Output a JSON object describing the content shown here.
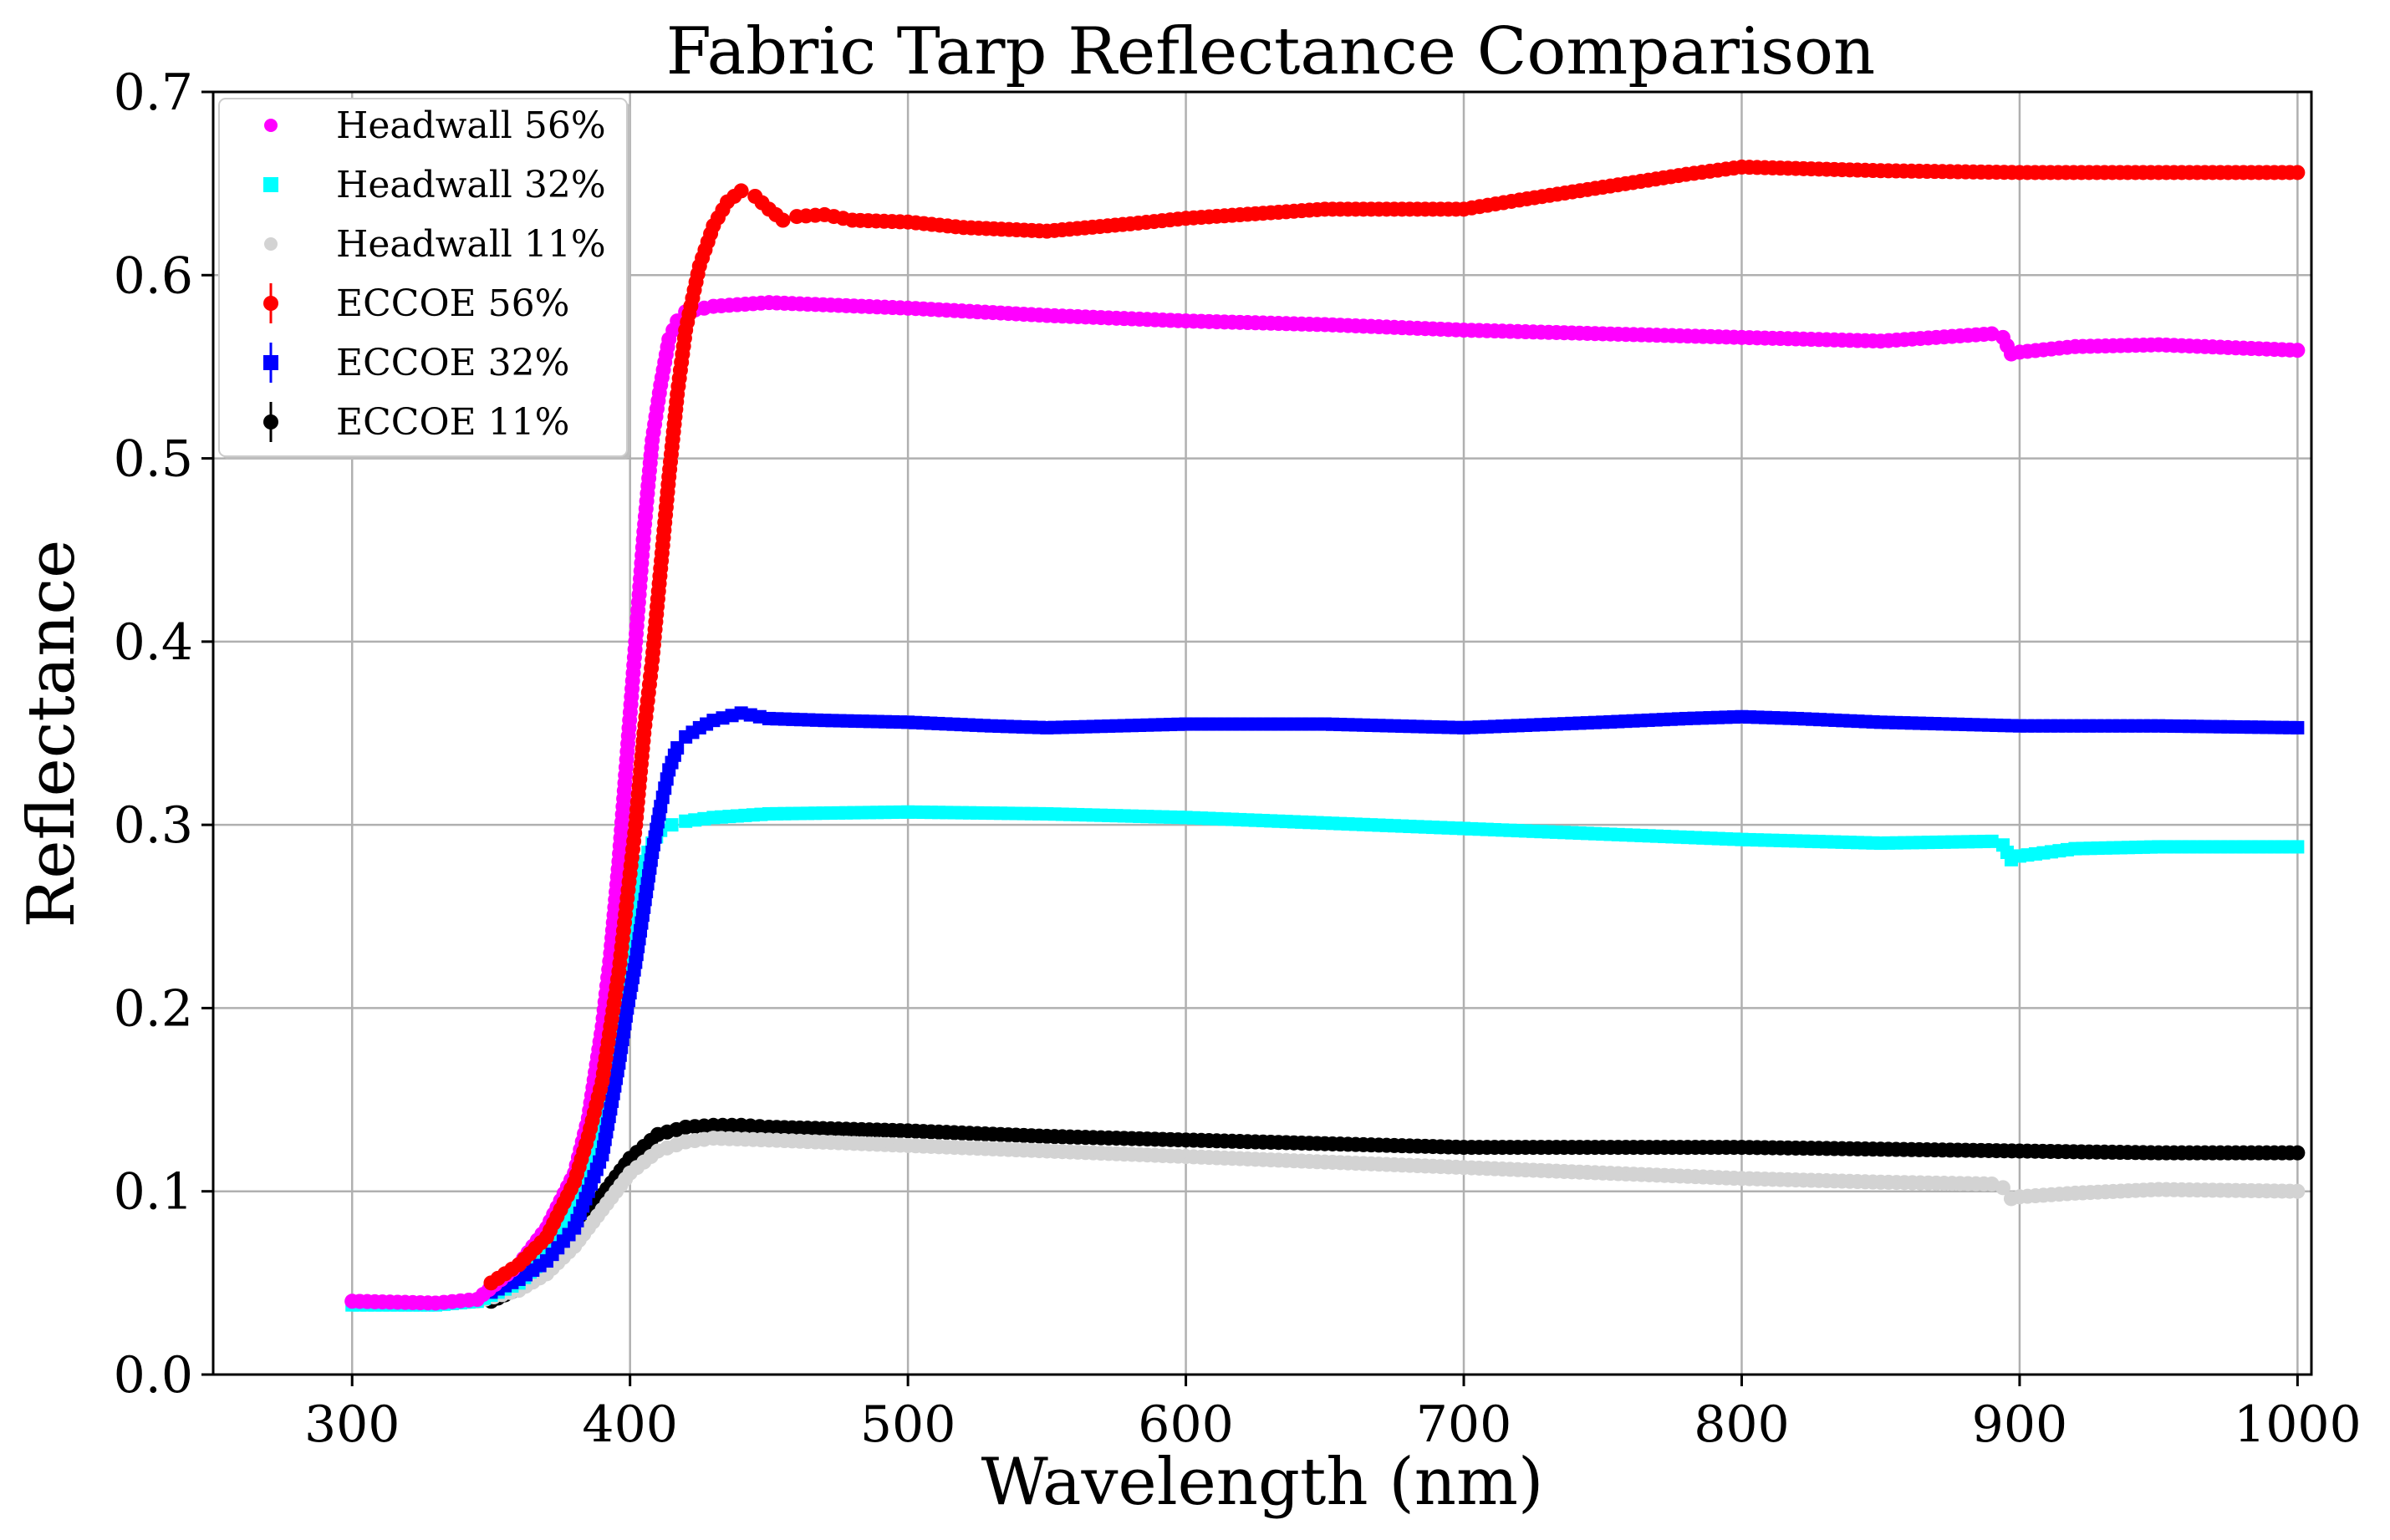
{
  "chart_data": {
    "type": "scatter",
    "title": "Fabric Tarp Reflectance Comparison",
    "xlabel": "Wavelength (nm)",
    "ylabel": "Reflectance",
    "xlim": [
      250,
      1005
    ],
    "ylim": [
      0.0,
      0.7
    ],
    "xticks": [
      300,
      400,
      500,
      600,
      700,
      800,
      900,
      1000
    ],
    "yticks": [
      0.0,
      0.1,
      0.2,
      0.3,
      0.4,
      0.5,
      0.6,
      0.7
    ],
    "xtick_labels": [
      "300",
      "400",
      "500",
      "600",
      "700",
      "800",
      "900",
      "1000"
    ],
    "ytick_labels": [
      "0.0",
      "0.1",
      "0.2",
      "0.3",
      "0.4",
      "0.5",
      "0.6",
      "0.7"
    ],
    "grid": true,
    "legend_position": "top-left",
    "series": [
      {
        "name": "Headwall 56%",
        "color": "#ff00ff",
        "marker": "circle",
        "x": [
          300,
          330,
          345,
          360,
          370,
          380,
          385,
          390,
          393,
          396,
          399,
          402,
          405,
          408,
          411,
          414,
          417,
          420,
          430,
          450,
          500,
          550,
          600,
          650,
          700,
          750,
          800,
          850,
          890,
          894,
          897,
          900,
          920,
          950,
          1000
        ],
        "y": [
          0.04,
          0.039,
          0.041,
          0.06,
          0.08,
          0.11,
          0.14,
          0.19,
          0.23,
          0.28,
          0.34,
          0.4,
          0.46,
          0.51,
          0.54,
          0.565,
          0.575,
          0.58,
          0.583,
          0.585,
          0.582,
          0.578,
          0.575,
          0.573,
          0.57,
          0.568,
          0.566,
          0.564,
          0.568,
          0.566,
          0.557,
          0.558,
          0.561,
          0.562,
          0.559
        ]
      },
      {
        "name": "Headwall 32%",
        "color": "#00ffff",
        "marker": "square",
        "x": [
          300,
          330,
          345,
          360,
          370,
          380,
          385,
          390,
          393,
          396,
          399,
          402,
          405,
          408,
          411,
          415,
          420,
          430,
          450,
          500,
          550,
          600,
          650,
          700,
          750,
          800,
          850,
          890,
          894,
          897,
          900,
          920,
          950,
          1000
        ],
        "y": [
          0.038,
          0.038,
          0.04,
          0.05,
          0.065,
          0.09,
          0.11,
          0.14,
          0.17,
          0.2,
          0.23,
          0.26,
          0.28,
          0.29,
          0.297,
          0.3,
          0.302,
          0.304,
          0.306,
          0.307,
          0.306,
          0.304,
          0.301,
          0.298,
          0.295,
          0.292,
          0.29,
          0.291,
          0.289,
          0.281,
          0.283,
          0.287,
          0.288,
          0.288
        ]
      },
      {
        "name": "Headwall 11%",
        "color": "#d3d3d3",
        "marker": "circle",
        "x": [
          300,
          330,
          345,
          360,
          370,
          380,
          390,
          400,
          410,
          420,
          430,
          450,
          500,
          550,
          600,
          650,
          700,
          750,
          800,
          850,
          890,
          894,
          897,
          900,
          920,
          950,
          1000
        ],
        "y": [
          0.04,
          0.039,
          0.04,
          0.046,
          0.055,
          0.07,
          0.09,
          0.11,
          0.122,
          0.127,
          0.129,
          0.128,
          0.125,
          0.122,
          0.119,
          0.116,
          0.113,
          0.11,
          0.107,
          0.105,
          0.104,
          0.102,
          0.096,
          0.097,
          0.099,
          0.101,
          0.1
        ]
      },
      {
        "name": "ECCOE 56%",
        "color": "#ff0000",
        "marker": "circle",
        "x": [
          350,
          360,
          370,
          375,
          380,
          385,
          390,
          393,
          396,
          399,
          402,
          405,
          408,
          411,
          414,
          417,
          420,
          425,
          430,
          435,
          440,
          445,
          450,
          455,
          460,
          470,
          480,
          500,
          520,
          550,
          580,
          600,
          650,
          700,
          720,
          750,
          780,
          800,
          850,
          900,
          950,
          1000
        ],
        "y": [
          0.05,
          0.06,
          0.075,
          0.09,
          0.105,
          0.13,
          0.16,
          0.19,
          0.22,
          0.26,
          0.3,
          0.35,
          0.39,
          0.44,
          0.49,
          0.535,
          0.57,
          0.605,
          0.627,
          0.64,
          0.646,
          0.643,
          0.636,
          0.63,
          0.632,
          0.633,
          0.63,
          0.629,
          0.626,
          0.624,
          0.628,
          0.631,
          0.636,
          0.636,
          0.641,
          0.648,
          0.655,
          0.659,
          0.657,
          0.656,
          0.656,
          0.656
        ]
      },
      {
        "name": "ECCOE 32%",
        "color": "#0000ff",
        "marker": "square",
        "x": [
          350,
          360,
          370,
          380,
          385,
          390,
          393,
          396,
          399,
          402,
          405,
          408,
          411,
          414,
          417,
          420,
          425,
          430,
          440,
          450,
          470,
          500,
          530,
          550,
          600,
          650,
          700,
          750,
          780,
          800,
          820,
          850,
          900,
          950,
          1000
        ],
        "y": [
          0.045,
          0.052,
          0.062,
          0.08,
          0.1,
          0.12,
          0.145,
          0.17,
          0.2,
          0.225,
          0.255,
          0.285,
          0.31,
          0.33,
          0.342,
          0.348,
          0.353,
          0.357,
          0.361,
          0.358,
          0.357,
          0.356,
          0.354,
          0.353,
          0.355,
          0.355,
          0.353,
          0.356,
          0.358,
          0.359,
          0.358,
          0.356,
          0.354,
          0.354,
          0.353
        ]
      },
      {
        "name": "ECCOE 11%",
        "color": "#000000",
        "marker": "circle",
        "x": [
          350,
          360,
          370,
          380,
          390,
          400,
          410,
          420,
          430,
          440,
          450,
          500,
          550,
          600,
          650,
          700,
          750,
          800,
          850,
          900,
          950,
          1000
        ],
        "y": [
          0.04,
          0.047,
          0.058,
          0.075,
          0.098,
          0.118,
          0.131,
          0.135,
          0.136,
          0.136,
          0.135,
          0.133,
          0.13,
          0.128,
          0.126,
          0.124,
          0.124,
          0.124,
          0.123,
          0.122,
          0.121,
          0.121
        ]
      }
    ]
  }
}
